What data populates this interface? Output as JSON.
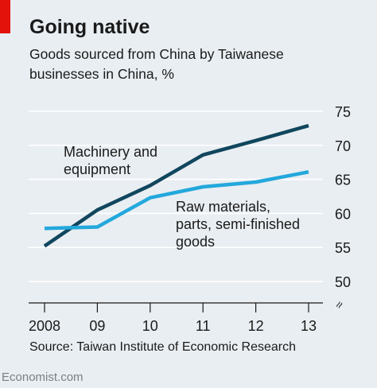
{
  "header": {
    "title": "Going native",
    "subtitle": "Goods sourced from China by Taiwanese businesses in China, %"
  },
  "footer": {
    "source": "Source: Taiwan Institute of Economic Research",
    "brand": "Economist.com"
  },
  "colors": {
    "background": "#e9eef2",
    "brand_red": "#e3120b",
    "series_dark": "#10465e",
    "series_light": "#23a8dc",
    "grid": "#ffffff"
  },
  "chart_data": {
    "type": "line",
    "title": "Going native",
    "subtitle": "Goods sourced from China by Taiwanese businesses in China, %",
    "x": [
      2008,
      2009,
      2010,
      2011,
      2012,
      2013
    ],
    "x_tick_labels": [
      "2008",
      "09",
      "10",
      "11",
      "12",
      "13"
    ],
    "y_ticks": [
      50,
      55,
      60,
      65,
      70,
      75
    ],
    "y_tick_labels": [
      "50",
      "55",
      "60",
      "65",
      "70",
      "75"
    ],
    "ylim": [
      50,
      75
    ],
    "axis_break_symbol": "≈",
    "grid": true,
    "y_axis_side": "right",
    "series": [
      {
        "name": "Machinery and equipment",
        "label_lines": [
          "Machinery and",
          "equipment"
        ],
        "color": "#10465e",
        "values": [
          55.2,
          60.5,
          64.1,
          68.6,
          70.7,
          72.9
        ]
      },
      {
        "name": "Raw materials, parts, semi-finished goods",
        "label_lines": [
          "Raw materials,",
          "parts, semi-finished",
          "goods"
        ],
        "color": "#23a8dc",
        "values": [
          57.8,
          58.0,
          62.3,
          63.9,
          64.6,
          66.1
        ]
      }
    ]
  }
}
